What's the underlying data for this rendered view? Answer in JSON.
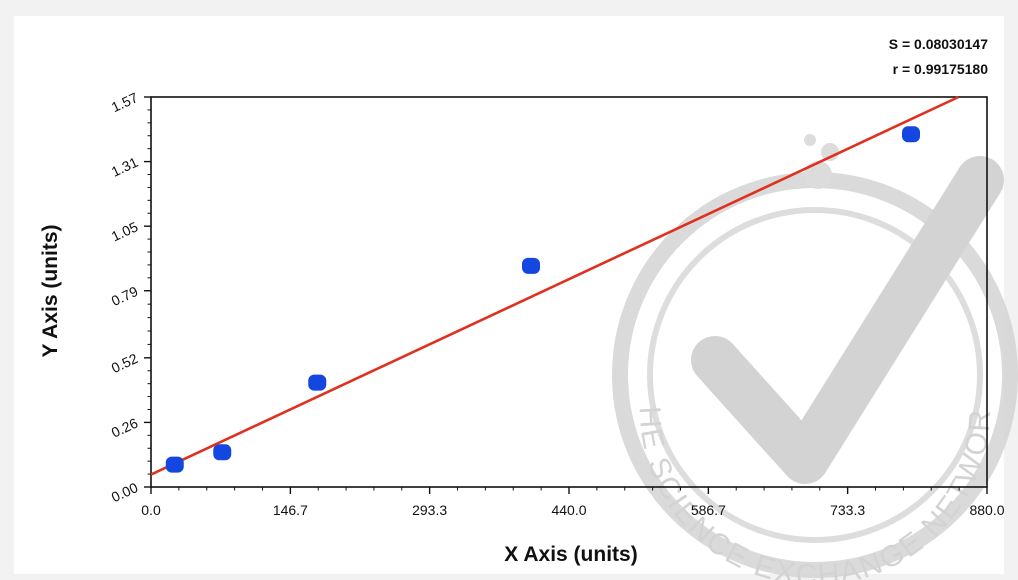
{
  "chart_data": {
    "type": "scatter",
    "title": "",
    "xlabel": "X Axis (units)",
    "ylabel": "Y Axis (units)",
    "xlim": [
      0,
      880
    ],
    "ylim": [
      0,
      1.57
    ],
    "x_ticks": [
      "0.0",
      "146.7",
      "293.3",
      "440.0",
      "586.7",
      "733.3",
      "880.0"
    ],
    "x_tick_values": [
      0,
      146.7,
      293.3,
      440.0,
      586.7,
      733.3,
      880.0
    ],
    "y_ticks": [
      "0.00",
      "0.26",
      "0.52",
      "0.79",
      "1.05",
      "1.31",
      "1.57"
    ],
    "y_tick_values": [
      0,
      0.26,
      0.52,
      0.79,
      1.05,
      1.31,
      1.57
    ],
    "series": [
      {
        "color": "#1446e0",
        "points": [
          {
            "x": 25,
            "y": 0.09
          },
          {
            "x": 75,
            "y": 0.14
          },
          {
            "x": 175,
            "y": 0.42
          },
          {
            "x": 400,
            "y": 0.89
          },
          {
            "x": 800,
            "y": 1.42
          }
        ]
      }
    ],
    "fit_line": {
      "color": "#e03020",
      "x": [
        0,
        850
      ],
      "y": [
        0.05,
        1.57
      ]
    },
    "stats": {
      "s": "S = 0.08030147",
      "r": "r = 0.99175180"
    },
    "grid": false,
    "watermark_text": "THE SCIENCE EXCHANGE NETWORK"
  }
}
